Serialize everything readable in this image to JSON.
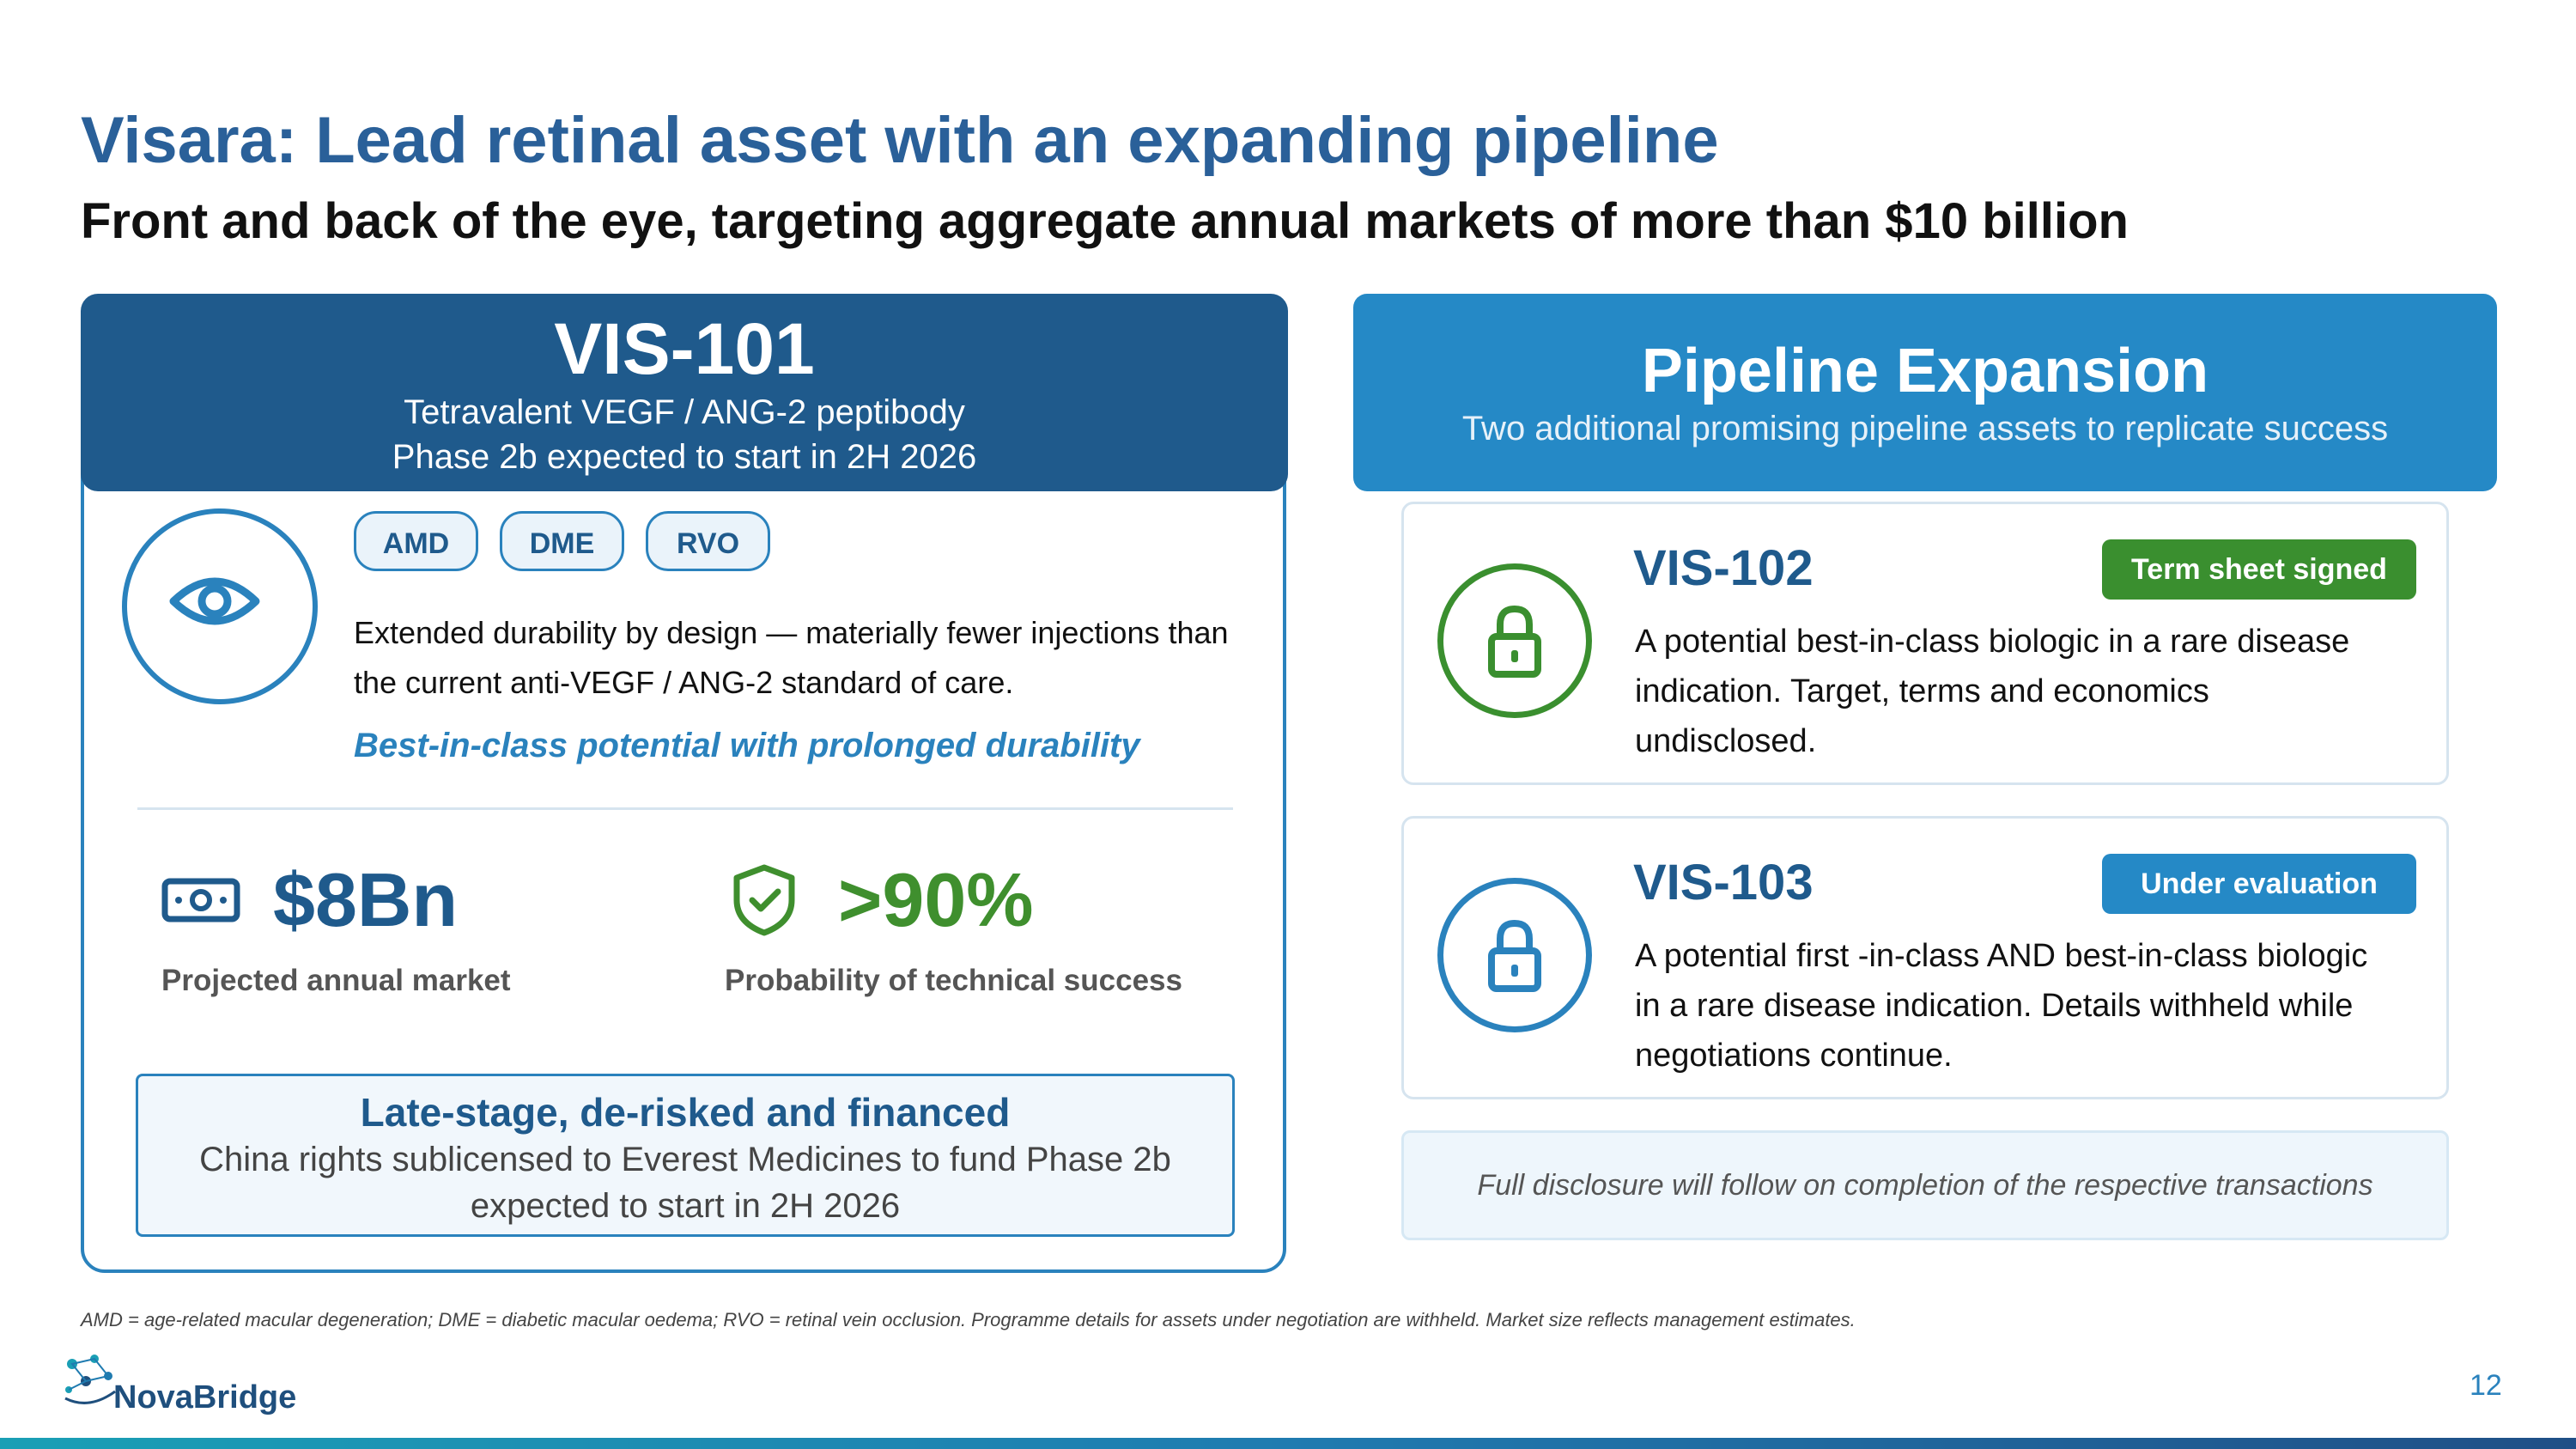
{
  "title": "Visara: Lead retinal asset with an expanding pipeline",
  "subtitle": "Front and back of the eye, targeting aggregate annual markets of more than $10 billion",
  "lead_asset": {
    "name": "VIS-101",
    "line1": "Tetravalent VEGF / ANG-2 peptibody",
    "line2": "Phase 2b expected to start in 2H 2026",
    "icon": "eye-icon",
    "tags": [
      "AMD",
      "DME",
      "RVO"
    ],
    "description": "Extended durability by design — materially fewer injections than the current anti-VEGF / ANG-2 standard of care.",
    "accent": "Best-in-class potential with prolonged durability",
    "stats": [
      {
        "icon": "money-icon",
        "value": "$8Bn",
        "label": "Projected annual market",
        "color": "#1f5a8c"
      },
      {
        "icon": "shield-check-icon",
        "value": ">90%",
        "label": "Probability of technical success",
        "color": "#3f8f2e"
      }
    ],
    "callout_title": "Late-stage, de-risked and financed",
    "callout_body": "China rights sublicensed to Everest Medicines to fund Phase 2b expected to start in 2H 2026"
  },
  "pipeline": {
    "title": "Pipeline Expansion",
    "subtitle": "Two additional promising pipeline assets to replicate success",
    "assets": [
      {
        "name": "VIS-102",
        "badge": "Term sheet signed",
        "badge_color": "#3a8f2f",
        "icon": "lock-icon",
        "icon_color": "#3a8f2f",
        "description": "A potential best-in-class biologic in a rare disease indication. Target, terms and economics undisclosed."
      },
      {
        "name": "VIS-103",
        "badge": "Under evaluation",
        "badge_color": "#2589c6",
        "icon": "lock-icon",
        "icon_color": "#2a82bd",
        "description": "A potential first -in-class AND best-in-class biologic in a rare disease indication. Details withheld while negotiations continue."
      }
    ],
    "disclosure": "Full disclosure will follow on completion of the respective transactions"
  },
  "footnote": "AMD = age-related macular degeneration; DME = diabetic macular oedema; RVO = retinal vein occlusion. Programme details for assets under negotiation are withheld. Market size reflects management estimates.",
  "logo": "NovaBridge",
  "page_number": "12",
  "colors": {
    "primary": "#2a6099",
    "dark_blue": "#1f5a8c",
    "accent_blue": "#2a82bd",
    "green": "#3a8f2f"
  }
}
